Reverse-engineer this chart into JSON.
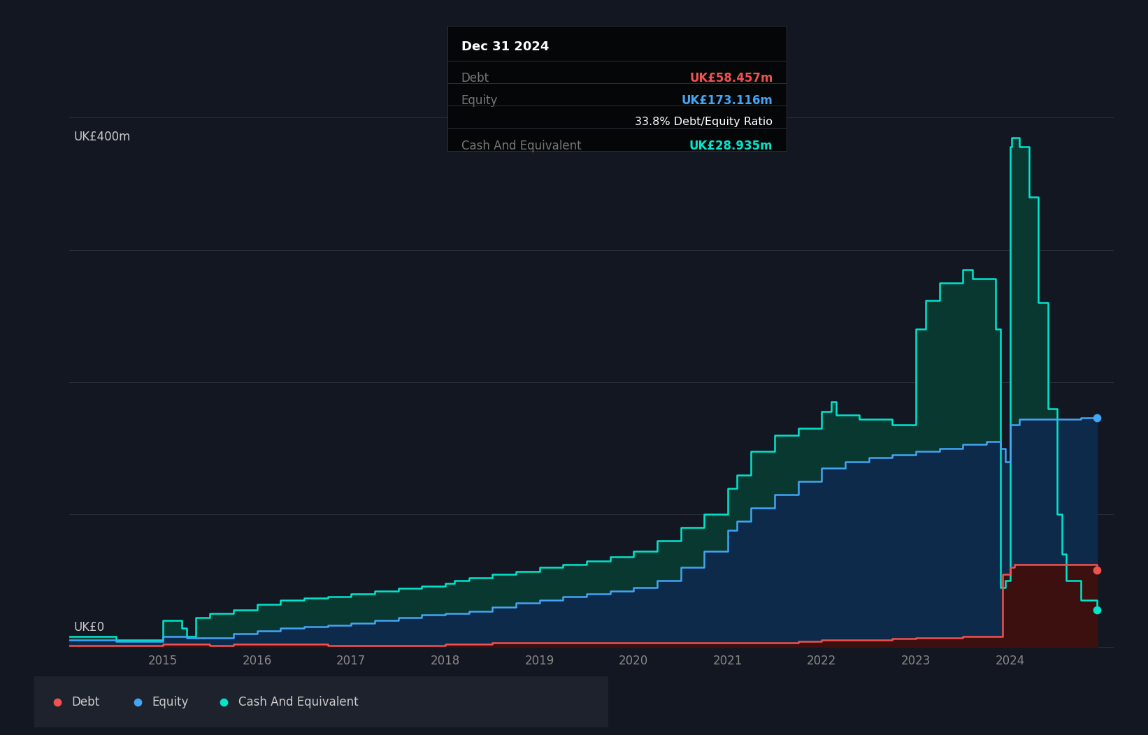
{
  "bg_color": "#131722",
  "plot_bg_color": "#131722",
  "grid_color": "#2a2e39",
  "ylabel": "UK£400m",
  "y0label": "UK£0",
  "debt_color": "#ef5350",
  "equity_color": "#42a5f5",
  "cash_color": "#00e5cc",
  "debt_fill": "#3d1010",
  "equity_fill": "#0d2a4a",
  "cash_fill": "#083830",
  "ylim": [
    0,
    400
  ],
  "legend_bg": "#1e222d",
  "tooltip_bg": "#050608",
  "tooltip_title": "Dec 31 2024",
  "tooltip_debt_label": "Debt",
  "tooltip_debt_value": "UK£58.457m",
  "tooltip_equity_label": "Equity",
  "tooltip_equity_value": "UK£173.116m",
  "tooltip_ratio": "33.8% Debt/Equity Ratio",
  "tooltip_cash_label": "Cash And Equivalent",
  "tooltip_cash_value": "UK£28.935m",
  "debt_data": {
    "x": [
      2014.0,
      2014.5,
      2015.0,
      2015.25,
      2015.5,
      2015.75,
      2016.0,
      2016.25,
      2016.5,
      2016.75,
      2017.0,
      2017.25,
      2017.5,
      2017.75,
      2018.0,
      2018.25,
      2018.5,
      2018.75,
      2019.0,
      2019.25,
      2019.5,
      2019.75,
      2020.0,
      2020.25,
      2020.5,
      2020.75,
      2021.0,
      2021.25,
      2021.5,
      2021.75,
      2022.0,
      2022.25,
      2022.5,
      2022.75,
      2023.0,
      2023.25,
      2023.5,
      2023.75,
      2023.9,
      2023.92,
      2024.0,
      2024.05,
      2024.25,
      2024.5,
      2024.75,
      2024.92
    ],
    "y": [
      1,
      1,
      2,
      2,
      1,
      2,
      2,
      2,
      2,
      1,
      1,
      1,
      1,
      1,
      2,
      2,
      3,
      3,
      3,
      3,
      3,
      3,
      3,
      3,
      3,
      3,
      3,
      3,
      3,
      4,
      5,
      5,
      5,
      6,
      7,
      7,
      8,
      8,
      8,
      55,
      60,
      62,
      62,
      62,
      62,
      58
    ]
  },
  "equity_data": {
    "x": [
      2014.0,
      2014.5,
      2015.0,
      2015.25,
      2015.5,
      2015.75,
      2016.0,
      2016.25,
      2016.5,
      2016.75,
      2017.0,
      2017.25,
      2017.5,
      2017.75,
      2018.0,
      2018.25,
      2018.5,
      2018.75,
      2019.0,
      2019.25,
      2019.5,
      2019.75,
      2020.0,
      2020.25,
      2020.5,
      2020.75,
      2021.0,
      2021.1,
      2021.25,
      2021.5,
      2021.75,
      2022.0,
      2022.25,
      2022.5,
      2022.75,
      2023.0,
      2023.25,
      2023.5,
      2023.75,
      2023.9,
      2023.95,
      2024.0,
      2024.1,
      2024.25,
      2024.5,
      2024.75,
      2024.92
    ],
    "y": [
      5,
      4,
      8,
      7,
      7,
      10,
      12,
      14,
      15,
      16,
      18,
      20,
      22,
      24,
      25,
      27,
      30,
      33,
      35,
      38,
      40,
      42,
      45,
      50,
      60,
      72,
      88,
      95,
      105,
      115,
      125,
      135,
      140,
      143,
      145,
      148,
      150,
      153,
      155,
      150,
      140,
      168,
      172,
      172,
      172,
      173,
      173
    ]
  },
  "cash_data": {
    "x": [
      2014.0,
      2014.5,
      2015.0,
      2015.2,
      2015.25,
      2015.35,
      2015.5,
      2015.75,
      2016.0,
      2016.25,
      2016.5,
      2016.75,
      2017.0,
      2017.25,
      2017.5,
      2017.75,
      2018.0,
      2018.1,
      2018.25,
      2018.5,
      2018.75,
      2019.0,
      2019.25,
      2019.5,
      2019.75,
      2020.0,
      2020.25,
      2020.5,
      2020.75,
      2021.0,
      2021.1,
      2021.25,
      2021.5,
      2021.75,
      2022.0,
      2022.1,
      2022.15,
      2022.25,
      2022.4,
      2022.5,
      2022.75,
      2023.0,
      2023.1,
      2023.25,
      2023.5,
      2023.6,
      2023.75,
      2023.85,
      2023.9,
      2023.95,
      2024.0,
      2024.02,
      2024.1,
      2024.2,
      2024.3,
      2024.4,
      2024.5,
      2024.55,
      2024.6,
      2024.75,
      2024.92
    ],
    "y": [
      8,
      5,
      20,
      14,
      8,
      22,
      25,
      28,
      32,
      35,
      37,
      38,
      40,
      42,
      44,
      46,
      48,
      50,
      52,
      55,
      57,
      60,
      62,
      65,
      68,
      72,
      80,
      90,
      100,
      120,
      130,
      148,
      160,
      165,
      178,
      185,
      175,
      175,
      172,
      172,
      168,
      240,
      262,
      275,
      285,
      278,
      278,
      240,
      45,
      50,
      378,
      385,
      378,
      340,
      260,
      180,
      100,
      70,
      50,
      35,
      28
    ]
  },
  "xticks": [
    2015,
    2016,
    2017,
    2018,
    2019,
    2020,
    2021,
    2022,
    2023,
    2024
  ],
  "legend_items": [
    {
      "label": "Debt",
      "color": "#ef5350"
    },
    {
      "label": "Equity",
      "color": "#42a5f5"
    },
    {
      "label": "Cash And Equivalent",
      "color": "#00e5cc"
    }
  ]
}
